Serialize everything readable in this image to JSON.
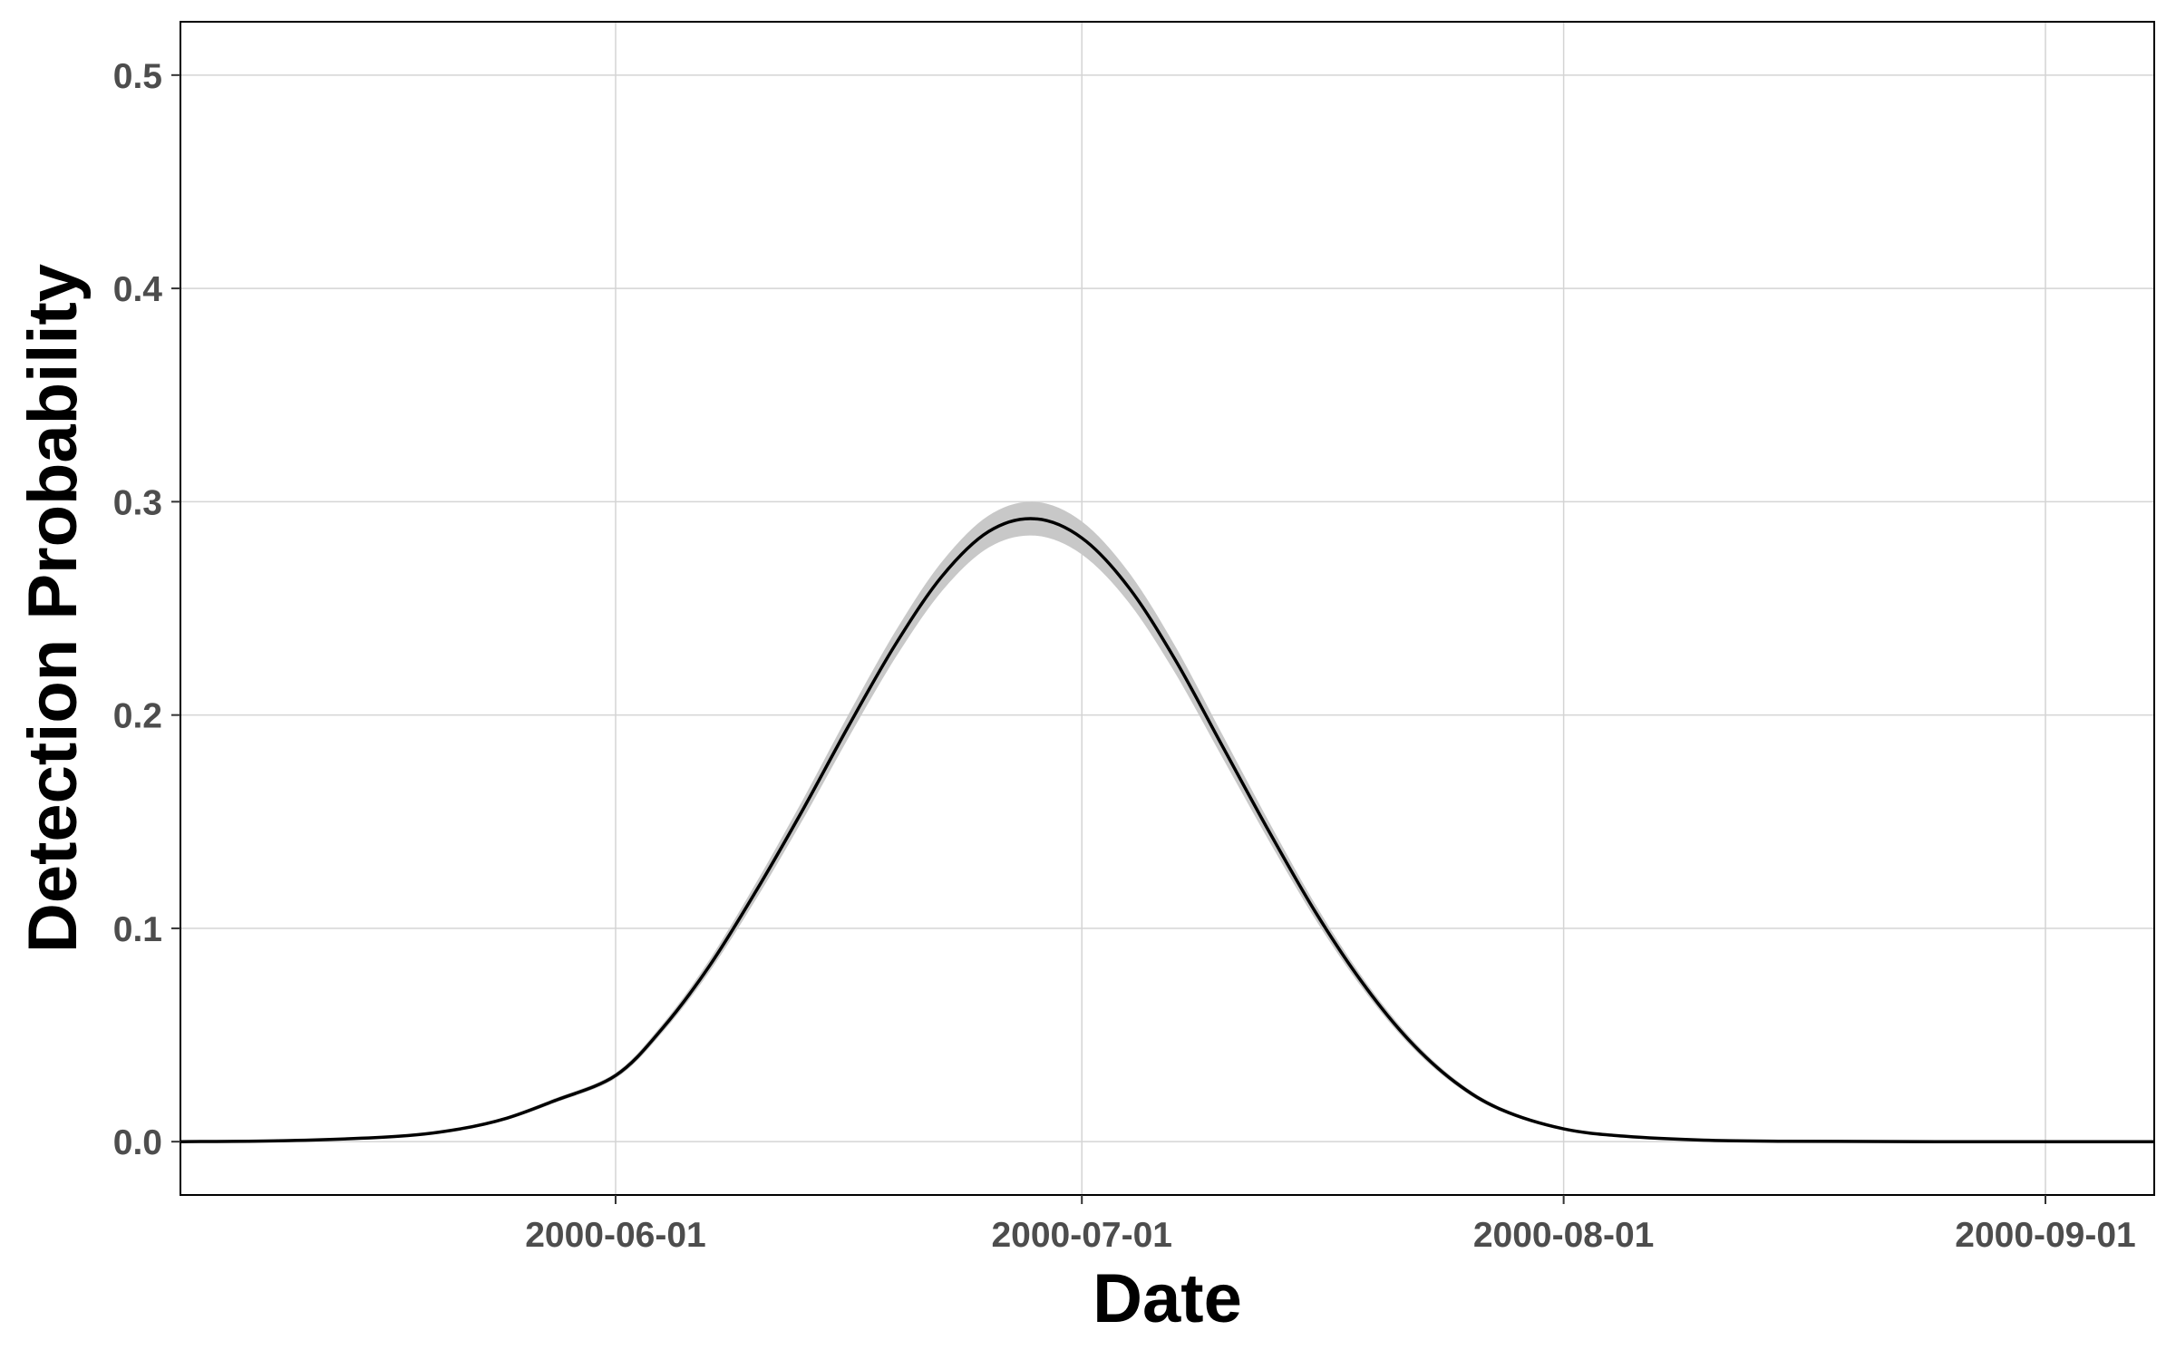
{
  "chart_data": {
    "type": "line",
    "title": "",
    "xlabel": "Date",
    "ylabel": "Detection Probability",
    "x_axis_type": "date",
    "xlim": [
      "2000-05-04",
      "2000-09-08"
    ],
    "ylim": [
      -0.025,
      0.525
    ],
    "x_ticks": [
      "2000-06-01",
      "2000-07-01",
      "2000-08-01",
      "2000-09-01"
    ],
    "y_ticks": [
      "0.0",
      "0.1",
      "0.2",
      "0.3",
      "0.4",
      "0.5"
    ],
    "grid": true,
    "legend": "none",
    "series": [
      {
        "x": [
          "2000-05-04",
          "2000-05-11",
          "2000-05-18",
          "2000-05-22",
          "2000-05-25",
          "2000-05-28",
          "2000-06-01",
          "2000-06-04",
          "2000-06-07",
          "2000-06-10",
          "2000-06-13",
          "2000-06-16",
          "2000-06-19",
          "2000-06-22",
          "2000-06-25",
          "2000-06-28",
          "2000-07-01",
          "2000-07-04",
          "2000-07-07",
          "2000-07-10",
          "2000-07-13",
          "2000-07-16",
          "2000-07-19",
          "2000-07-22",
          "2000-07-25",
          "2000-07-28",
          "2000-08-01",
          "2000-08-05",
          "2000-08-10",
          "2000-08-15",
          "2000-08-25",
          "2000-09-08"
        ],
        "values": [
          0.0,
          0.0005,
          0.0025,
          0.006,
          0.011,
          0.019,
          0.031,
          0.053,
          0.082,
          0.117,
          0.155,
          0.195,
          0.233,
          0.265,
          0.286,
          0.292,
          0.283,
          0.26,
          0.226,
          0.186,
          0.146,
          0.108,
          0.075,
          0.048,
          0.028,
          0.015,
          0.006,
          0.0025,
          0.0007,
          0.0002,
          0.0,
          0.0
        ],
        "ci_halfwidth": [
          0.0,
          0.0,
          0.0001,
          0.0002,
          0.0004,
          0.0006,
          0.0008,
          0.0013,
          0.002,
          0.003,
          0.0038,
          0.0046,
          0.0054,
          0.0062,
          0.007,
          0.0075,
          0.0072,
          0.0064,
          0.0055,
          0.0045,
          0.0036,
          0.0027,
          0.0019,
          0.0013,
          0.0008,
          0.0005,
          0.0002,
          0.0001,
          0.0,
          0.0,
          0.0,
          0.0
        ]
      }
    ],
    "colors": {
      "line": "#000000",
      "ribbon": "#c8c8c8",
      "grid": "#d4d4d4",
      "frame": "#000000"
    }
  }
}
